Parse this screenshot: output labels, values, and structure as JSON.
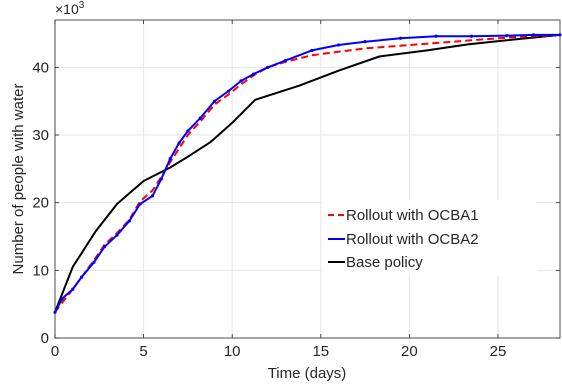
{
  "chart_data": {
    "type": "line",
    "xlabel": "Time (days)",
    "ylabel": "Number of people with water",
    "y_multiplier_label": "×10",
    "y_multiplier_exp": "3",
    "xlim": [
      0,
      28.5
    ],
    "ylim": [
      0,
      47
    ],
    "xticks": [
      0,
      5,
      10,
      15,
      20,
      25
    ],
    "yticks": [
      0,
      10,
      20,
      30,
      40
    ],
    "grid": true,
    "legend_position": "center-right",
    "series": [
      {
        "name": "Rollout with OCBA1",
        "color": "#ff0000",
        "dash": "dashed",
        "x": [
          0,
          0.4,
          1.0,
          1.5,
          2.2,
          2.8,
          3.5,
          4.2,
          4.8,
          5.5,
          6.0,
          6.5,
          7.0,
          7.5,
          8.2,
          9.0,
          9.8,
          10.5,
          11.2,
          12.0,
          13.0,
          14.5,
          16.0,
          17.5,
          19.5,
          21.5,
          23.5,
          25.5,
          27.0,
          28.5
        ],
        "y": [
          3.8,
          5.2,
          7.2,
          9.0,
          11.5,
          13.8,
          15.5,
          17.5,
          20.2,
          21.8,
          23.8,
          26.0,
          28.0,
          30.0,
          32.0,
          34.5,
          36.0,
          37.5,
          38.8,
          40.0,
          40.8,
          41.8,
          42.3,
          42.8,
          43.2,
          43.6,
          44.0,
          44.4,
          44.6,
          44.8
        ]
      },
      {
        "name": "Rollout with OCBA2",
        "color": "#0000ff",
        "dash": "solid",
        "x": [
          0,
          0.4,
          1.0,
          1.5,
          2.2,
          2.8,
          3.5,
          4.2,
          4.8,
          5.5,
          6.0,
          6.5,
          7.0,
          7.5,
          8.2,
          9.0,
          9.8,
          10.5,
          11.2,
          12.0,
          13.0,
          14.5,
          16.0,
          17.5,
          19.5,
          21.5,
          23.5,
          25.5,
          27.0,
          28.5
        ],
        "y": [
          3.8,
          5.8,
          7.2,
          9.0,
          11.2,
          13.5,
          15.2,
          17.3,
          19.8,
          21.0,
          23.5,
          26.5,
          28.8,
          30.6,
          32.5,
          35.0,
          36.5,
          38.0,
          39.0,
          40.0,
          41.0,
          42.5,
          43.3,
          43.8,
          44.3,
          44.6,
          44.6,
          44.7,
          44.8,
          44.8
        ]
      },
      {
        "name": "Base policy",
        "color": "#000000",
        "dash": "solid",
        "x": [
          0,
          1.0,
          2.3,
          3.5,
          5.0,
          6.5,
          7.5,
          8.8,
          10.0,
          11.3,
          13.8,
          16.0,
          18.3,
          21.0,
          23.3,
          25.5,
          28.5
        ],
        "y": [
          3.8,
          10.5,
          15.8,
          19.8,
          23.2,
          25.2,
          26.8,
          29.0,
          31.8,
          35.2,
          37.3,
          39.5,
          41.6,
          42.5,
          43.4,
          44.0,
          44.8
        ]
      }
    ]
  }
}
